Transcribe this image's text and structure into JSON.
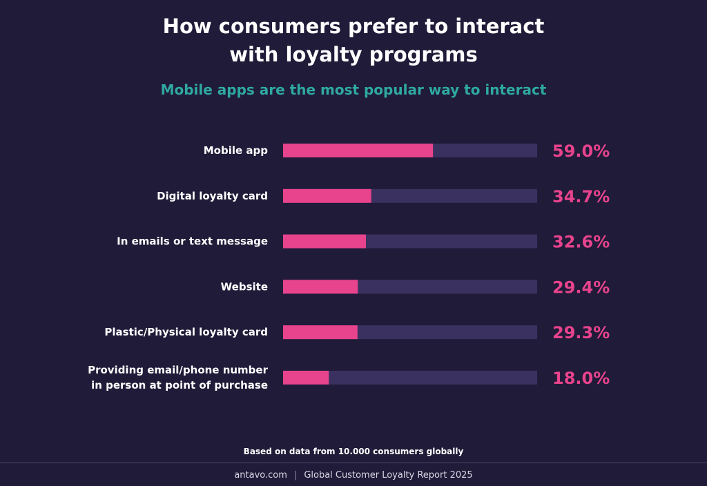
{
  "title_line1": "How consumers prefer to interact",
  "title_line2": "with loyalty programs",
  "subtitle": "Mobile apps are the most popular way to interact",
  "footnote": "Based on data from 10.000 consumers globally",
  "source": {
    "site": "antavo.com",
    "separator": "|",
    "report": "Global Customer Loyalty Report 2025"
  },
  "colors": {
    "background": "#1f1b38",
    "bar_fill": "#e8438d",
    "bar_track": "#3a3160",
    "value_text": "#e8438d",
    "label_text": "#ffffff",
    "subtitle": "#2fa9a1"
  },
  "chart_data": {
    "type": "bar",
    "orientation": "horizontal",
    "categories": [
      [
        "Mobile app"
      ],
      [
        "Digital loyalty card"
      ],
      [
        "In emails or text message"
      ],
      [
        "Website"
      ],
      [
        "Plastic/Physical loyalty card"
      ],
      [
        "Providing email/phone number",
        "in person at point of purchase"
      ]
    ],
    "values": [
      59.0,
      34.7,
      32.6,
      29.4,
      29.3,
      18.0
    ],
    "value_labels": [
      "59.0%",
      "34.7%",
      "32.6%",
      "29.4%",
      "29.3%",
      "18.0%"
    ],
    "xlim": [
      0,
      100
    ],
    "unit": "%",
    "grid": false,
    "legend": "none"
  }
}
